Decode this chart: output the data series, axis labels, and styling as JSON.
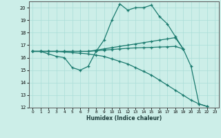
{
  "xlabel": "Humidex (Indice chaleur)",
  "xlim": [
    -0.5,
    23.5
  ],
  "ylim": [
    12,
    20.5
  ],
  "yticks": [
    12,
    13,
    14,
    15,
    16,
    17,
    18,
    19,
    20
  ],
  "xticks": [
    0,
    1,
    2,
    3,
    4,
    5,
    6,
    7,
    8,
    9,
    10,
    11,
    12,
    13,
    14,
    15,
    16,
    17,
    18,
    19,
    20,
    21,
    22,
    23
  ],
  "bg_color": "#cceee8",
  "grid_color": "#aaddd8",
  "line_color": "#1a7a6e",
  "line1_y": [
    16.5,
    16.5,
    16.3,
    16.1,
    16.0,
    15.2,
    15.0,
    15.3,
    16.5,
    17.4,
    19.0,
    20.3,
    19.8,
    20.0,
    20.0,
    20.2,
    19.3,
    18.7,
    17.7,
    16.7,
    15.3,
    12.3,
    12.1
  ],
  "line2_y": [
    16.5,
    16.5,
    16.5,
    16.5,
    16.45,
    16.4,
    16.35,
    16.3,
    16.2,
    16.1,
    15.9,
    15.7,
    15.5,
    15.2,
    14.9,
    14.6,
    14.2,
    13.8,
    13.4,
    13.0,
    12.6,
    12.3,
    12.1
  ],
  "line3_y": [
    16.5,
    16.5,
    16.5,
    16.5,
    16.5,
    16.5,
    16.5,
    16.5,
    16.6,
    16.7,
    16.8,
    16.9,
    17.0,
    17.1,
    17.2,
    17.3,
    17.4,
    17.5,
    17.6,
    16.7
  ],
  "line4_y": [
    16.5,
    16.5,
    16.5,
    16.5,
    16.5,
    16.5,
    16.5,
    16.5,
    16.55,
    16.6,
    16.65,
    16.7,
    16.75,
    16.78,
    16.8,
    16.82,
    16.85,
    16.87,
    16.9,
    16.7
  ]
}
